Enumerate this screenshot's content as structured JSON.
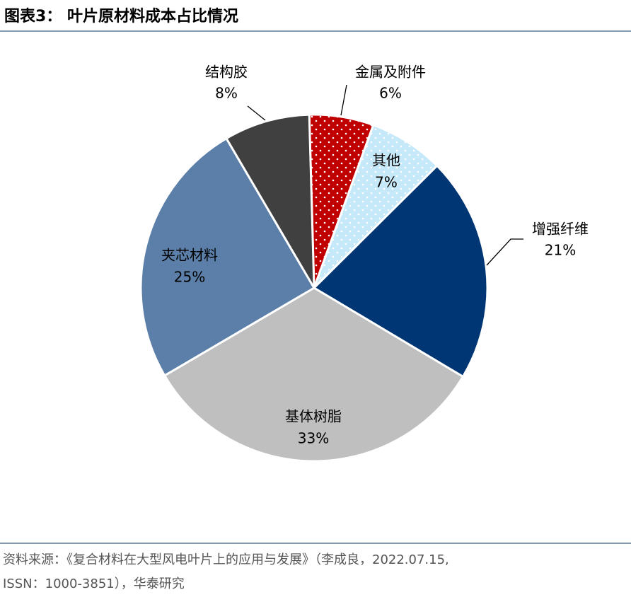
{
  "chart_data": {
    "type": "pie",
    "title": "图表3： 叶片原材料成本占比情况",
    "categories": [
      "金属及附件",
      "其他",
      "增强纤维",
      "基体树脂",
      "夹芯材料",
      "结构胶"
    ],
    "values": [
      6,
      7,
      21,
      33,
      25,
      8
    ],
    "value_labels": [
      "6%",
      "7%",
      "21%",
      "33%",
      "25%",
      "8%"
    ],
    "colors": [
      "#c00000",
      "#c6e9fa",
      "#003673",
      "#bfbfbf",
      "#5b7fa8",
      "#404040"
    ],
    "patterns": [
      "dots",
      "dots",
      null,
      null,
      null,
      null
    ],
    "source": [
      "资料来源：《复合材料在大型风电叶片上的应用与发展》（李成良，2022.07.15,",
      "ISSN：1000-3851），华泰研究"
    ]
  }
}
